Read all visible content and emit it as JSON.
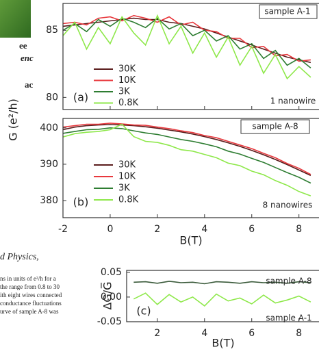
{
  "chart_data": [
    {
      "type": "line",
      "y_label": "G (e²/h)",
      "x": [
        -2,
        -1.5,
        -1,
        -0.5,
        0,
        0.5,
        1,
        1.5,
        2,
        2.5,
        3,
        3.5,
        4,
        4.5,
        5,
        5.5,
        6,
        6.5,
        7,
        7.5,
        8,
        8.5
      ],
      "xlim": [
        -2,
        8.85
      ],
      "xticks": [
        -2,
        0,
        2,
        4,
        6,
        8
      ],
      "ylim": [
        79.1,
        87.0
      ],
      "yticks": [
        80,
        85
      ],
      "series": [
        {
          "name": "30K",
          "color": "#5a1c1c",
          "values": [
            85.3,
            85.4,
            85.5,
            85.6,
            85.7,
            85.8,
            85.9,
            85.8,
            85.8,
            85.6,
            85.5,
            85.3,
            85.1,
            84.8,
            84.5,
            84.2,
            83.9,
            83.6,
            83.3,
            83.0,
            82.8,
            82.6
          ]
        },
        {
          "name": "10K",
          "color": "#e8383d",
          "values": [
            85.5,
            85.6,
            85.4,
            85.9,
            86.0,
            85.7,
            86.1,
            85.9,
            85.6,
            86.0,
            85.4,
            85.6,
            85.0,
            84.9,
            84.4,
            84.4,
            83.7,
            83.8,
            83.1,
            83.2,
            82.7,
            82.8
          ]
        },
        {
          "name": "3K",
          "color": "#2e7d32",
          "values": [
            85.0,
            85.5,
            84.9,
            85.8,
            85.3,
            85.9,
            85.6,
            85.2,
            85.9,
            85.1,
            85.5,
            84.6,
            85.0,
            84.2,
            84.6,
            83.6,
            84.0,
            82.9,
            83.5,
            82.4,
            82.9,
            82.2
          ]
        },
        {
          "name": "0.8K",
          "color": "#8ee84a",
          "values": [
            84.6,
            85.6,
            83.6,
            85.2,
            84.0,
            86.0,
            84.8,
            83.9,
            86.1,
            84.0,
            85.3,
            83.3,
            84.8,
            83.0,
            84.5,
            82.4,
            83.8,
            81.8,
            83.2,
            81.4,
            82.3,
            81.5
          ]
        }
      ],
      "annotations": [
        "sample A-1",
        "(a)",
        "1 nanowire"
      ]
    },
    {
      "type": "line",
      "x_label": "B(T)",
      "x": [
        -2,
        -1.5,
        -1,
        -0.5,
        0,
        0.5,
        1,
        1.5,
        2,
        2.5,
        3,
        3.5,
        4,
        4.5,
        5,
        5.5,
        6,
        6.5,
        7,
        7.5,
        8,
        8.5
      ],
      "xlim": [
        -2,
        8.85
      ],
      "xticks": [
        -2,
        0,
        2,
        4,
        6,
        8
      ],
      "ylim": [
        375.3,
        402.6
      ],
      "yticks": [
        380,
        390,
        400
      ],
      "series": [
        {
          "name": "30K",
          "color": "#5a1c1c",
          "values": [
            399.5,
            400.2,
            400.6,
            400.8,
            400.9,
            400.8,
            400.6,
            400.3,
            399.9,
            399.4,
            398.9,
            398.3,
            397.6,
            396.8,
            395.9,
            394.9,
            393.8,
            392.6,
            391.3,
            389.9,
            388.4,
            386.9
          ]
        },
        {
          "name": "10K",
          "color": "#e8383d",
          "values": [
            400.2,
            400.6,
            401.0,
            401.0,
            401.3,
            401.1,
            400.8,
            400.7,
            400.2,
            399.8,
            399.2,
            398.7,
            397.9,
            397.3,
            396.3,
            395.3,
            394.3,
            393.0,
            391.8,
            390.2,
            388.9,
            387.2
          ]
        },
        {
          "name": "3K",
          "color": "#2e7d32",
          "values": [
            398.5,
            399.0,
            399.5,
            399.6,
            400.0,
            399.8,
            399.2,
            398.6,
            398.2,
            397.5,
            396.8,
            396.3,
            395.6,
            394.8,
            393.6,
            392.8,
            391.6,
            390.5,
            389.1,
            387.7,
            386.4,
            384.8
          ]
        },
        {
          "name": "0.8K",
          "color": "#8ee84a",
          "values": [
            397.5,
            398.4,
            398.8,
            399.0,
            399.5,
            401.0,
            397.6,
            396.3,
            396.0,
            395.2,
            394.0,
            393.6,
            392.7,
            391.8,
            390.3,
            389.6,
            388.1,
            387.1,
            385.5,
            384.2,
            382.5,
            381.3
          ]
        }
      ],
      "annotations": [
        "sample A-8",
        "(b)",
        "8 nanowires"
      ]
    },
    {
      "type": "line",
      "x_label": "B(T)",
      "y_label": "ΔG/G̅",
      "x": [
        1,
        1.5,
        2,
        2.5,
        3,
        3.5,
        4,
        4.5,
        5,
        5.5,
        6,
        6.5,
        7,
        7.5,
        8,
        8.5
      ],
      "xlim": [
        0.7,
        8.85
      ],
      "xticks": [
        2,
        4,
        6,
        8
      ],
      "ylim": [
        -0.05,
        0.054
      ],
      "yticks": [
        0.05,
        {
          "value": 0,
          "label": "0.00"
        },
        -0.05
      ],
      "series": [
        {
          "color": "#3a5a3a",
          "values": [
            0.03,
            0.031,
            0.028,
            0.032,
            0.029,
            0.03,
            0.027,
            0.031,
            0.03,
            0.028,
            0.031,
            0.029,
            0.03,
            0.028,
            0.031,
            0.029
          ]
        },
        {
          "color": "#8ee84a",
          "values": [
            -0.004,
            0.008,
            -0.015,
            0.005,
            -0.01,
            0.0,
            -0.018,
            0.006,
            -0.008,
            -0.002,
            -0.014,
            0.004,
            -0.012,
            -0.006,
            0.002,
            -0.01
          ]
        }
      ],
      "annotations": [
        "sample A-8",
        "sample A-1",
        "(c)"
      ]
    }
  ],
  "left_fragments": {
    "headings": [
      "ee",
      "enc",
      "ac"
    ],
    "journal": "d Physics,",
    "caption": [
      "ns in units of e²/h for a",
      "the range from 0.8 to 30",
      "ith eight wires connected",
      "conductance fluctuations",
      "urve of sample A-8 was"
    ]
  }
}
